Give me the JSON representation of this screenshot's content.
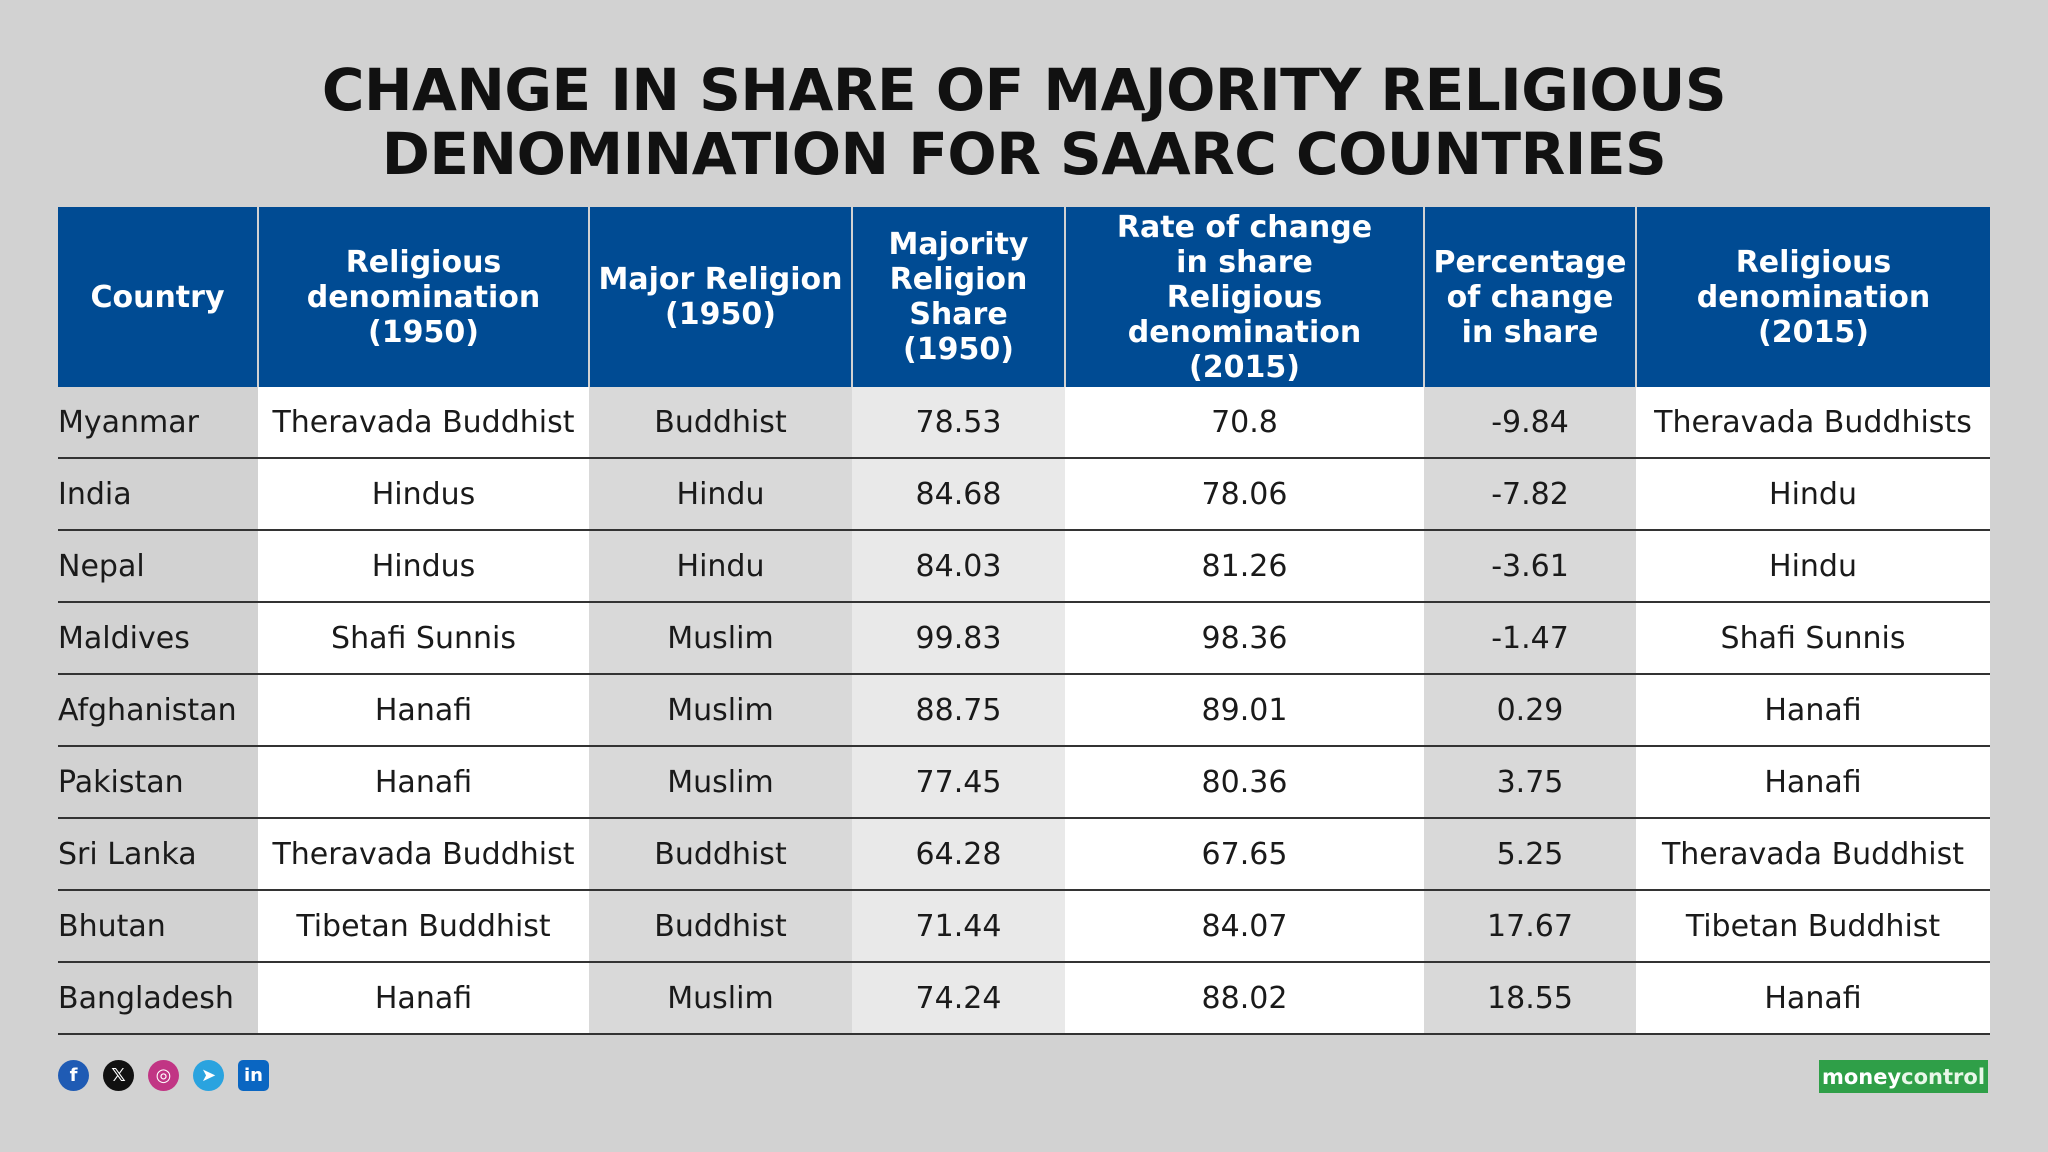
{
  "title": {
    "line1": "CHANGE IN SHARE OF MAJORITY RELIGIOUS",
    "line2": "DENOMINATION FOR SAARC COUNTRIES"
  },
  "chart_data": {
    "type": "table",
    "columns": [
      [
        "Country"
      ],
      [
        "Religious",
        "denomination",
        "(1950)"
      ],
      [
        "Major Religion",
        "(1950)"
      ],
      [
        "Majority",
        "Religion",
        "Share (1950)"
      ],
      [
        "Rate of change",
        "in share",
        "Religious",
        "denomination (2015)"
      ],
      [
        "Percentage",
        "of change",
        "in share"
      ],
      [
        "Religious",
        "denomination (2015)"
      ]
    ],
    "rows": [
      [
        "Myanmar",
        "Theravada Buddhist",
        "Buddhist",
        "78.53",
        "70.8",
        "-9.84",
        "Theravada Buddhists"
      ],
      [
        "India",
        "Hindus",
        "Hindu",
        "84.68",
        "78.06",
        "-7.82",
        "Hindu"
      ],
      [
        "Nepal",
        "Hindus",
        "Hindu",
        "84.03",
        "81.26",
        "-3.61",
        "Hindu"
      ],
      [
        "Maldives",
        "Shafi Sunnis",
        "Muslim",
        "99.83",
        "98.36",
        "-1.47",
        "Shafi Sunnis"
      ],
      [
        "Afghanistan",
        "Hanafi",
        "Muslim",
        "88.75",
        "89.01",
        "0.29",
        "Hanafi"
      ],
      [
        "Pakistan",
        "Hanafi",
        "Muslim",
        "77.45",
        "80.36",
        "3.75",
        "Hanafi"
      ],
      [
        "Sri Lanka",
        "Theravada Buddhist",
        "Buddhist",
        "64.28",
        "67.65",
        "5.25",
        "Theravada Buddhist"
      ],
      [
        "Bhutan",
        "Tibetan Buddhist",
        "Buddhist",
        "71.44",
        "84.07",
        "17.67",
        "Tibetan Buddhist"
      ],
      [
        "Bangladesh",
        "Hanafi",
        "Muslim",
        "74.24",
        "88.02",
        "18.55",
        "Hanafi"
      ]
    ]
  },
  "footer": {
    "social_icons": [
      "facebook-icon",
      "x-icon",
      "instagram-icon",
      "telegram-icon",
      "linkedin-icon"
    ],
    "logo_part1": "money",
    "logo_part2": "control"
  },
  "colors": {
    "header_bg": "#004b93",
    "page_bg": "#d2d2d2",
    "logo_bg": "#2f9f48"
  }
}
